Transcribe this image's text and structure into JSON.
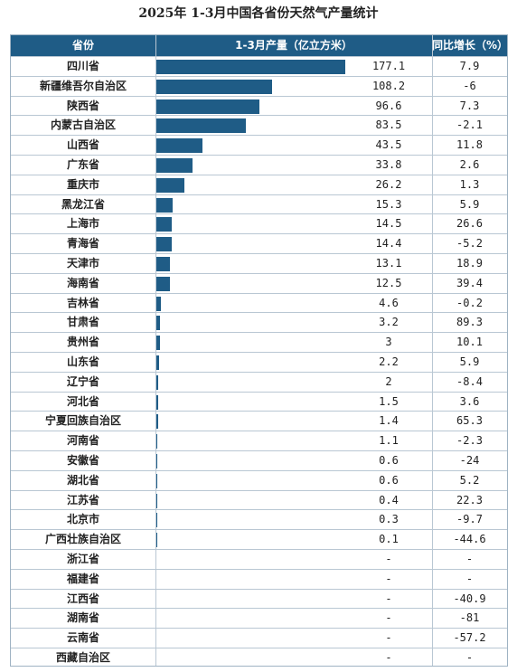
{
  "title": "2025年 1-3月中国各省份天然气产量统计",
  "header": {
    "province": "省份",
    "production": "1-3月产量（亿立方米）",
    "yoy": "同比增长（%）"
  },
  "colors": {
    "bar": "#1f5c86",
    "header_bg": "#1f5c86"
  },
  "chart_data": {
    "type": "bar",
    "categories": [
      "四川省",
      "新疆维吾尔自治区",
      "陕西省",
      "内蒙古自治区",
      "山西省",
      "广东省",
      "重庆市",
      "黑龙江省",
      "上海市",
      "青海省",
      "天津市",
      "海南省",
      "吉林省",
      "甘肃省",
      "贵州省",
      "山东省",
      "辽宁省",
      "河北省",
      "宁夏回族自治区",
      "河南省",
      "安徽省",
      "湖北省",
      "江苏省",
      "北京市",
      "广西壮族自治区",
      "浙江省",
      "福建省",
      "江西省",
      "湖南省",
      "云南省",
      "西藏自治区"
    ],
    "values": [
      "177.1",
      "108.2",
      "96.6",
      "83.5",
      "43.5",
      "33.8",
      "26.2",
      "15.3",
      "14.5",
      "14.4",
      "13.1",
      "12.5",
      "4.6",
      "3.2",
      "3",
      "2.2",
      "2",
      "1.5",
      "1.4",
      "1.1",
      "0.6",
      "0.6",
      "0.4",
      "0.3",
      "0.1",
      "-",
      "-",
      "-",
      "-",
      "-",
      "-"
    ],
    "yoy": [
      "7.9",
      "-6",
      "7.3",
      "-2.1",
      "11.8",
      "2.6",
      "1.3",
      "5.9",
      "26.6",
      "-5.2",
      "18.9",
      "39.4",
      "-0.2",
      "89.3",
      "10.1",
      "5.9",
      "-8.4",
      "3.6",
      "65.3",
      "-2.3",
      "-24",
      "5.2",
      "22.3",
      "-9.7",
      "-44.6",
      "-",
      "-",
      "-40.9",
      "-81",
      "-57.2",
      "-"
    ],
    "xmax": 177.1
  }
}
